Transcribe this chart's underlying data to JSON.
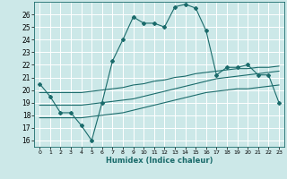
{
  "xlabel": "Humidex (Indice chaleur)",
  "bg_color": "#cce8e8",
  "grid_color": "#ffffff",
  "line_color": "#1a6b6b",
  "xlim": [
    -0.5,
    23.5
  ],
  "ylim": [
    15.5,
    27.0
  ],
  "xticks": [
    0,
    1,
    2,
    3,
    4,
    5,
    6,
    7,
    8,
    9,
    10,
    11,
    12,
    13,
    14,
    15,
    16,
    17,
    18,
    19,
    20,
    21,
    22,
    23
  ],
  "yticks": [
    16,
    17,
    18,
    19,
    20,
    21,
    22,
    23,
    24,
    25,
    26
  ],
  "series1_x": [
    0,
    1,
    2,
    3,
    4,
    5,
    6,
    7,
    8,
    9,
    10,
    11,
    12,
    13,
    14,
    15,
    16,
    17,
    18,
    19,
    20,
    21,
    22,
    23
  ],
  "series1_y": [
    20.5,
    19.5,
    18.2,
    18.2,
    17.2,
    16.0,
    19.0,
    22.3,
    24.0,
    25.8,
    25.3,
    25.3,
    25.0,
    26.6,
    26.8,
    26.5,
    24.7,
    21.2,
    21.8,
    21.8,
    22.0,
    21.2,
    21.2,
    19.0
  ],
  "series2_x": [
    0,
    1,
    2,
    3,
    4,
    5,
    6,
    7,
    8,
    9,
    10,
    11,
    12,
    13,
    14,
    15,
    16,
    17,
    18,
    19,
    20,
    21,
    22,
    23
  ],
  "series2_y": [
    18.8,
    18.8,
    18.8,
    18.8,
    18.8,
    18.9,
    19.0,
    19.1,
    19.2,
    19.3,
    19.5,
    19.7,
    19.9,
    20.1,
    20.3,
    20.5,
    20.7,
    20.9,
    21.0,
    21.1,
    21.2,
    21.3,
    21.4,
    21.5
  ],
  "series3_x": [
    0,
    1,
    2,
    3,
    4,
    5,
    6,
    7,
    8,
    9,
    10,
    11,
    12,
    13,
    14,
    15,
    16,
    17,
    18,
    19,
    20,
    21,
    22,
    23
  ],
  "series3_y": [
    17.8,
    17.8,
    17.8,
    17.8,
    17.8,
    17.9,
    18.0,
    18.1,
    18.2,
    18.4,
    18.6,
    18.8,
    19.0,
    19.2,
    19.4,
    19.6,
    19.8,
    19.9,
    20.0,
    20.1,
    20.1,
    20.2,
    20.3,
    20.4
  ],
  "series4_x": [
    0,
    1,
    2,
    3,
    4,
    5,
    6,
    7,
    8,
    9,
    10,
    11,
    12,
    13,
    14,
    15,
    16,
    17,
    18,
    19,
    20,
    21,
    22,
    23
  ],
  "series4_y": [
    19.8,
    19.8,
    19.8,
    19.8,
    19.8,
    19.9,
    20.0,
    20.1,
    20.2,
    20.4,
    20.5,
    20.7,
    20.8,
    21.0,
    21.1,
    21.3,
    21.4,
    21.5,
    21.6,
    21.7,
    21.7,
    21.8,
    21.8,
    21.9
  ]
}
